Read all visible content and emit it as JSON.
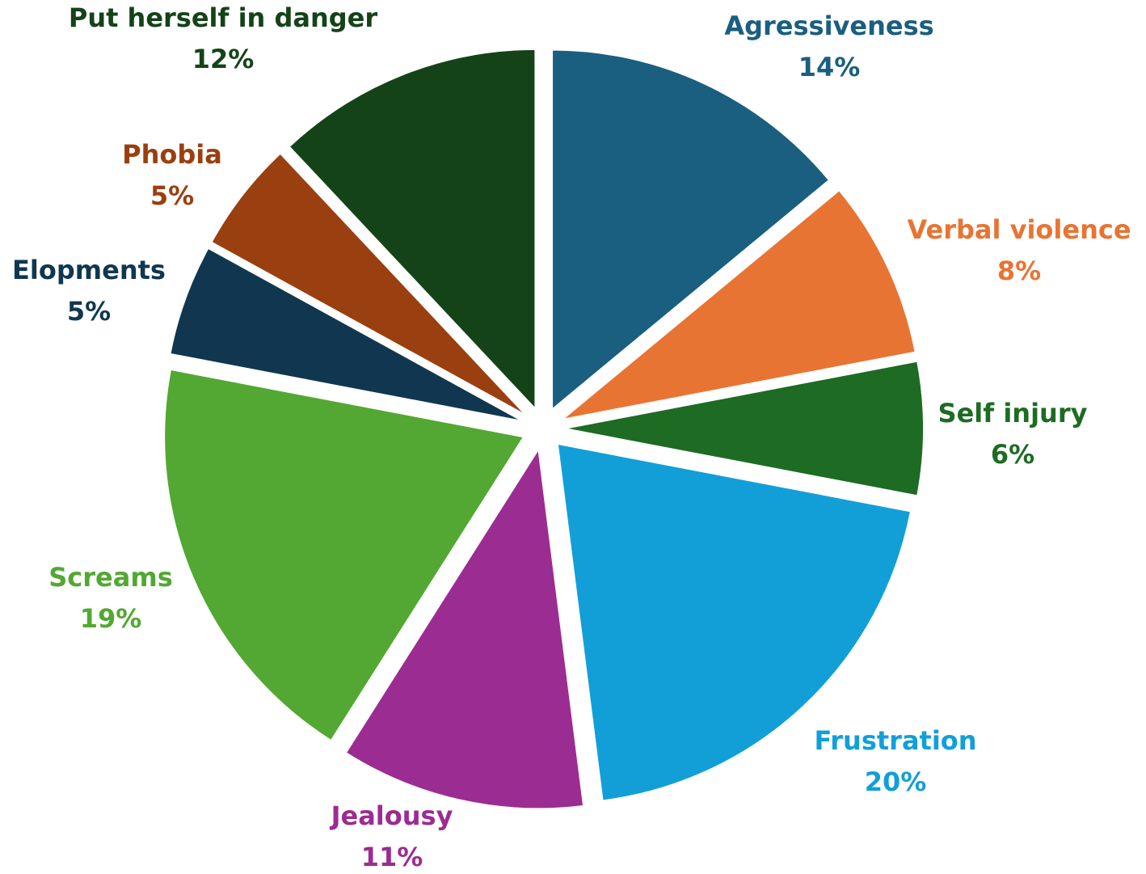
{
  "chart_data": {
    "type": "pie",
    "title": "",
    "legend": "none",
    "slices": [
      {
        "label": "Agressiveness",
        "value": 14,
        "pct_label": "14%",
        "color": "#1a5e80"
      },
      {
        "label": "Verbal violence",
        "value": 8,
        "pct_label": "8%",
        "color": "#e87433"
      },
      {
        "label": "Self injury",
        "value": 6,
        "pct_label": "6%",
        "color": "#1e6b24"
      },
      {
        "label": "Frustration",
        "value": 20,
        "pct_label": "20%",
        "color": "#129fd8"
      },
      {
        "label": "Jealousy",
        "value": 11,
        "pct_label": "11%",
        "color": "#9b2c92"
      },
      {
        "label": "Screams",
        "value": 19,
        "pct_label": "19%",
        "color": "#52a832"
      },
      {
        "label": "Elopments",
        "value": 5,
        "pct_label": "5%",
        "color": "#10374f"
      },
      {
        "label": "Phobia",
        "value": 5,
        "pct_label": "5%",
        "color": "#9a3f10"
      },
      {
        "label": "Put herself in danger",
        "value": 12,
        "pct_label": "12%",
        "color": "#144318"
      }
    ]
  }
}
